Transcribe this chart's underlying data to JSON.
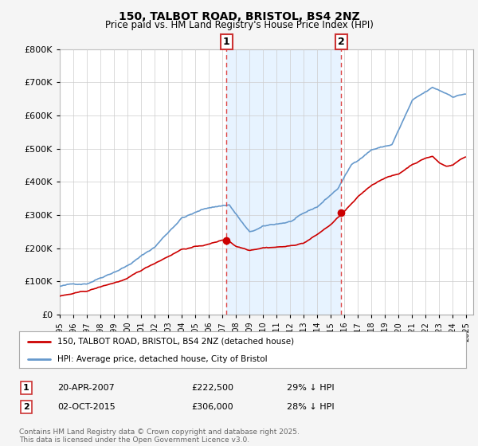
{
  "title": "150, TALBOT ROAD, BRISTOL, BS4 2NZ",
  "subtitle": "Price paid vs. HM Land Registry's House Price Index (HPI)",
  "legend_line1": "150, TALBOT ROAD, BRISTOL, BS4 2NZ (detached house)",
  "legend_line2": "HPI: Average price, detached house, City of Bristol",
  "transaction1_label": "1",
  "transaction1_date": "20-APR-2007",
  "transaction1_price": "£222,500",
  "transaction1_hpi": "29% ↓ HPI",
  "transaction2_label": "2",
  "transaction2_date": "02-OCT-2015",
  "transaction2_price": "£306,000",
  "transaction2_hpi": "28% ↓ HPI",
  "copyright": "Contains HM Land Registry data © Crown copyright and database right 2025.\nThis data is licensed under the Open Government Licence v3.0.",
  "transaction1_x": 2007.29,
  "transaction1_y": 222500,
  "transaction2_x": 2015.75,
  "transaction2_y": 306000,
  "ylim": [
    0,
    800000
  ],
  "xlim": [
    1995,
    2025.5
  ],
  "line_color_red": "#cc0000",
  "line_color_blue": "#6699cc",
  "shade_color": "#ddeeff",
  "background_color": "#f5f5f5",
  "plot_bg_color": "#ffffff",
  "grid_color": "#cccccc",
  "vline_color": "#dd4444"
}
